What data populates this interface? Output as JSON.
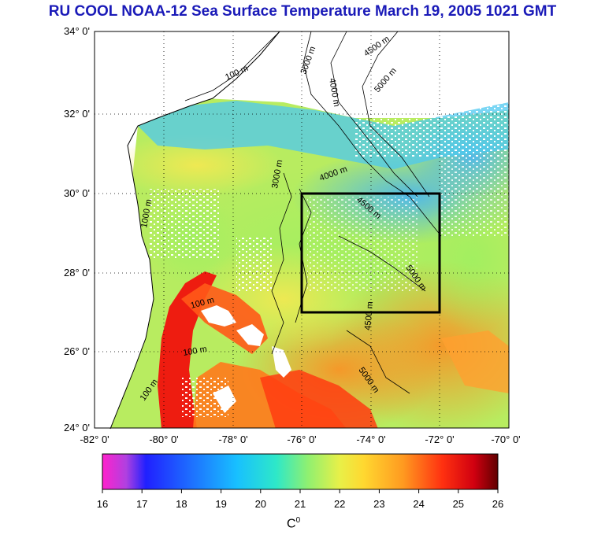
{
  "title": "RU COOL  NOAA-12 Sea Surface Temperature March 19, 2005 1021 GMT",
  "map": {
    "lat_range": [
      24,
      34
    ],
    "lon_range": [
      -82,
      -70
    ],
    "lat_ticks": [
      "24° 0'",
      "26° 0'",
      "28° 0'",
      "30° 0'",
      "32° 0'",
      "34° 0'"
    ],
    "lon_ticks": [
      "-82° 0'",
      "-80° 0'",
      "-78° 0'",
      "-76° 0'",
      "-74° 0'",
      "-72° 0'",
      "-70° 0'"
    ],
    "box": {
      "lon": [
        -76,
        -72
      ],
      "lat": [
        27,
        30
      ]
    },
    "contour_labels": [
      "100 m",
      "3000 m",
      "4000 m",
      "4500 m",
      "5000 m",
      "1000 m",
      "4000 m",
      "4500 m",
      "5000 m",
      "100 m",
      "100 m",
      "100 m",
      "3000 m",
      "4500 m",
      "5000 m"
    ]
  },
  "colorbar": {
    "min": 16,
    "max": 26,
    "ticks": [
      "16",
      "17",
      "18",
      "19",
      "20",
      "21",
      "22",
      "23",
      "24",
      "25",
      "26"
    ],
    "unit_main": "C",
    "unit_sup": "0"
  }
}
